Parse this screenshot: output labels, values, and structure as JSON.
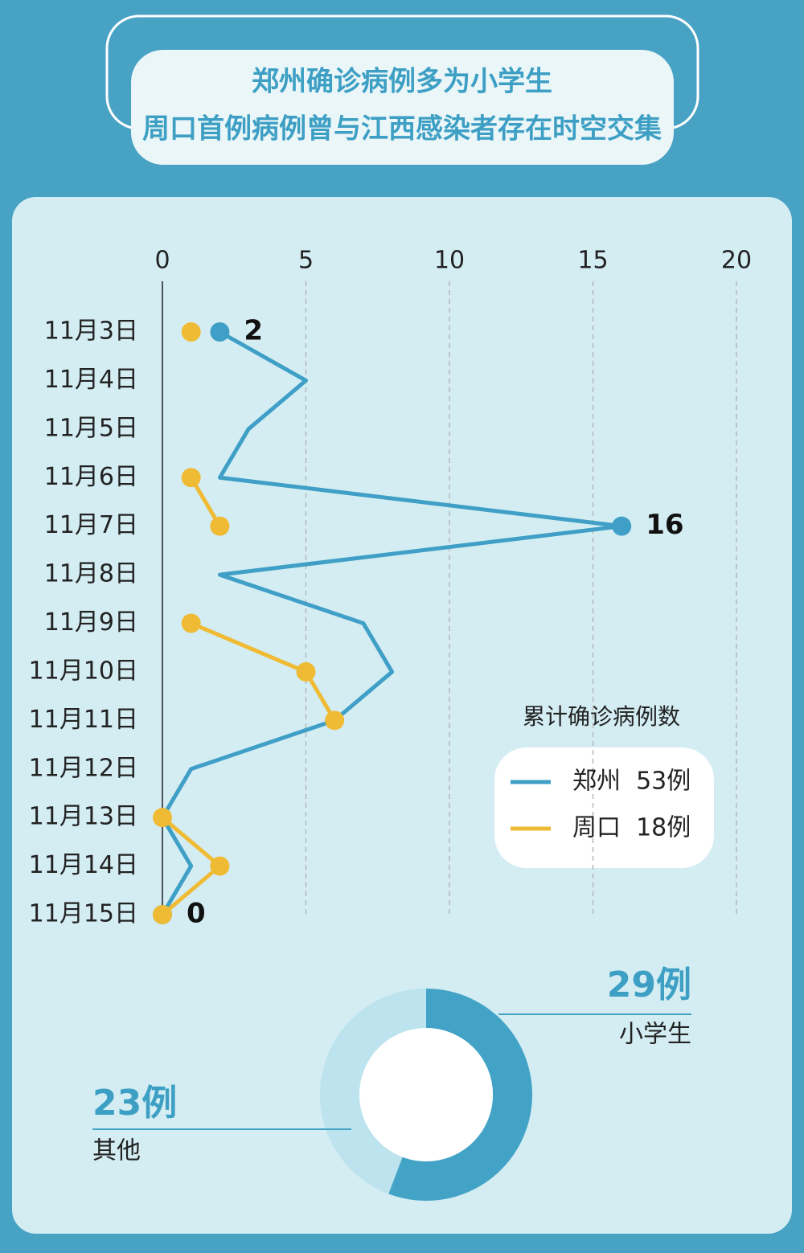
{
  "header": {
    "lines": [
      "郑州确诊病例多为小学生",
      "周口首例病例曾与江西感染者存在时空交集"
    ]
  },
  "chart_data": [
    {
      "type": "line",
      "orientation": "horizontal",
      "categories": [
        "11月3日",
        "11月4日",
        "11月5日",
        "11月6日",
        "11月7日",
        "11月8日",
        "11月9日",
        "11月10日",
        "11月11日",
        "11月12日",
        "11月13日",
        "11月14日",
        "11月15日"
      ],
      "xlim": [
        0,
        20
      ],
      "xticks": [
        0,
        5,
        10,
        15,
        20
      ],
      "grid": true,
      "legend_title": "累计确诊病例数",
      "legend": "right",
      "series": [
        {
          "name": "郑州  53例",
          "color": "#3f9fc6",
          "values": [
            2,
            5,
            3,
            2,
            16,
            2,
            7,
            8,
            6,
            1,
            0,
            1,
            0
          ],
          "value_labels": [
            "2",
            null,
            null,
            null,
            "16",
            null,
            null,
            null,
            null,
            null,
            null,
            null,
            "0"
          ]
        },
        {
          "name": "周口  18例",
          "color": "#f0bb34",
          "values": [
            1,
            null,
            null,
            1,
            2,
            null,
            1,
            5,
            6,
            null,
            0,
            2,
            0
          ]
        }
      ]
    },
    {
      "type": "pie",
      "categories": [
        "小学生",
        "其他"
      ],
      "values": [
        29,
        23
      ],
      "value_labels": [
        "29例",
        "23例"
      ],
      "colors": [
        "#43a3c7",
        "#bde3ee"
      ]
    }
  ]
}
